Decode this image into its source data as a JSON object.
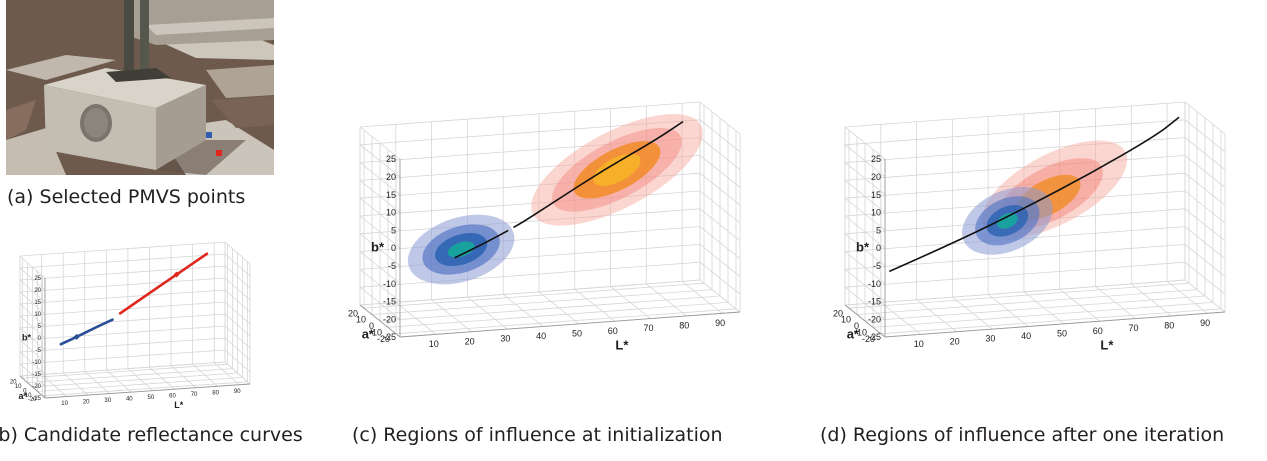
{
  "figure": {
    "captions": {
      "a": "(a) Selected PMVS points",
      "b": "(b) Candidate reflectance curves",
      "c": "(c) Regions of  influence at initialization",
      "d": "(d) Regions of  influence after one iteration"
    }
  },
  "chart_data": [
    {
      "panel": "b",
      "type": "line",
      "projection": "3d",
      "xlabel": "L*",
      "ylabel": "a*",
      "zlabel": "b*",
      "x_ticks": [
        10,
        20,
        30,
        40,
        50,
        60,
        70,
        80,
        90
      ],
      "y_ticks": [
        -20,
        -10,
        0,
        10,
        20
      ],
      "z_ticks": [
        25,
        20,
        15,
        10,
        5,
        0,
        -5,
        -10,
        -15,
        -20,
        -25
      ],
      "series": [
        {
          "color": "#2a4f96",
          "points": [
            [
              12,
              -5,
              -7
            ],
            [
              20,
              -2,
              -5
            ],
            [
              30,
              1,
              -2
            ],
            [
              38,
              4,
              0
            ]
          ],
          "marker_index": 1
        },
        {
          "color": "#e0271e",
          "points": [
            [
              42,
              6,
              2
            ],
            [
              55,
              10,
              8
            ],
            [
              70,
              14,
              15
            ],
            [
              85,
              18,
              22
            ]
          ],
          "marker_index": 2
        }
      ]
    },
    {
      "panel": "c",
      "type": "line",
      "projection": "3d",
      "xlabel": "L*",
      "ylabel": "a*",
      "zlabel": "b*",
      "x_ticks": [
        10,
        20,
        30,
        40,
        50,
        60,
        70,
        80,
        90
      ],
      "y_ticks": [
        -20,
        -10,
        0,
        10,
        20
      ],
      "z_ticks": [
        25,
        20,
        15,
        10,
        5,
        0,
        -5,
        -10,
        -15,
        -20,
        -25
      ],
      "curve": [
        [
          20,
          -4,
          -8
        ],
        [
          35,
          0,
          -3
        ],
        [
          50,
          5,
          4
        ],
        [
          65,
          10,
          11
        ],
        [
          80,
          15,
          17
        ],
        [
          90,
          18,
          22
        ]
      ],
      "regions": [
        {
          "color": "#2a4f96",
          "center_l": 25,
          "note": "blue density at initialization"
        },
        {
          "color": "#f08a1e",
          "center_l": 70,
          "note": "orange density at initialization"
        }
      ]
    },
    {
      "panel": "d",
      "type": "line",
      "projection": "3d",
      "xlabel": "L*",
      "ylabel": "a*",
      "zlabel": "b*",
      "x_ticks": [
        10,
        20,
        30,
        40,
        50,
        60,
        70,
        80,
        90
      ],
      "y_ticks": [
        -20,
        -10,
        0,
        10,
        20
      ],
      "z_ticks": [
        25,
        20,
        15,
        10,
        5,
        0,
        -5,
        -10,
        -15,
        -20,
        -25
      ],
      "curve": [
        [
          5,
          -8,
          -10
        ],
        [
          25,
          -3,
          -4
        ],
        [
          45,
          2,
          3
        ],
        [
          65,
          9,
          10
        ],
        [
          85,
          16,
          18
        ],
        [
          92,
          19,
          22
        ]
      ],
      "regions": [
        {
          "color": "#2a4f96",
          "center_l": 40
        },
        {
          "color": "#f08a1e",
          "center_l": 50
        }
      ]
    }
  ]
}
